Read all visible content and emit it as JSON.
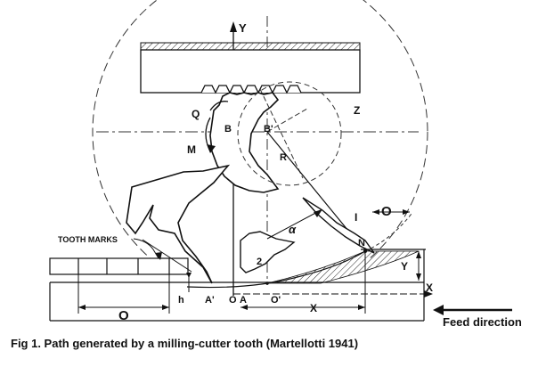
{
  "caption": "Fig 1. Path generated by a milling-cutter tooth (Martellotti 1941)",
  "feed_direction": "Feed direction",
  "tooth_marks": "TOOTH MARKS",
  "labels": {
    "Y": "Y",
    "Q": "Q",
    "Z": "Z",
    "B": "B",
    "B_prime": "B'",
    "M": "M",
    "R": "R",
    "alpha": "α",
    "I": "I",
    "O_top": "O",
    "N": "N",
    "Y_dim": "Y",
    "X_axis": "X",
    "num2": "2",
    "h": "h",
    "A_prime": "A'",
    "O_small": "O",
    "A": "A",
    "O_prime": "O'",
    "X_dim": "X",
    "O_bottom": "O"
  }
}
